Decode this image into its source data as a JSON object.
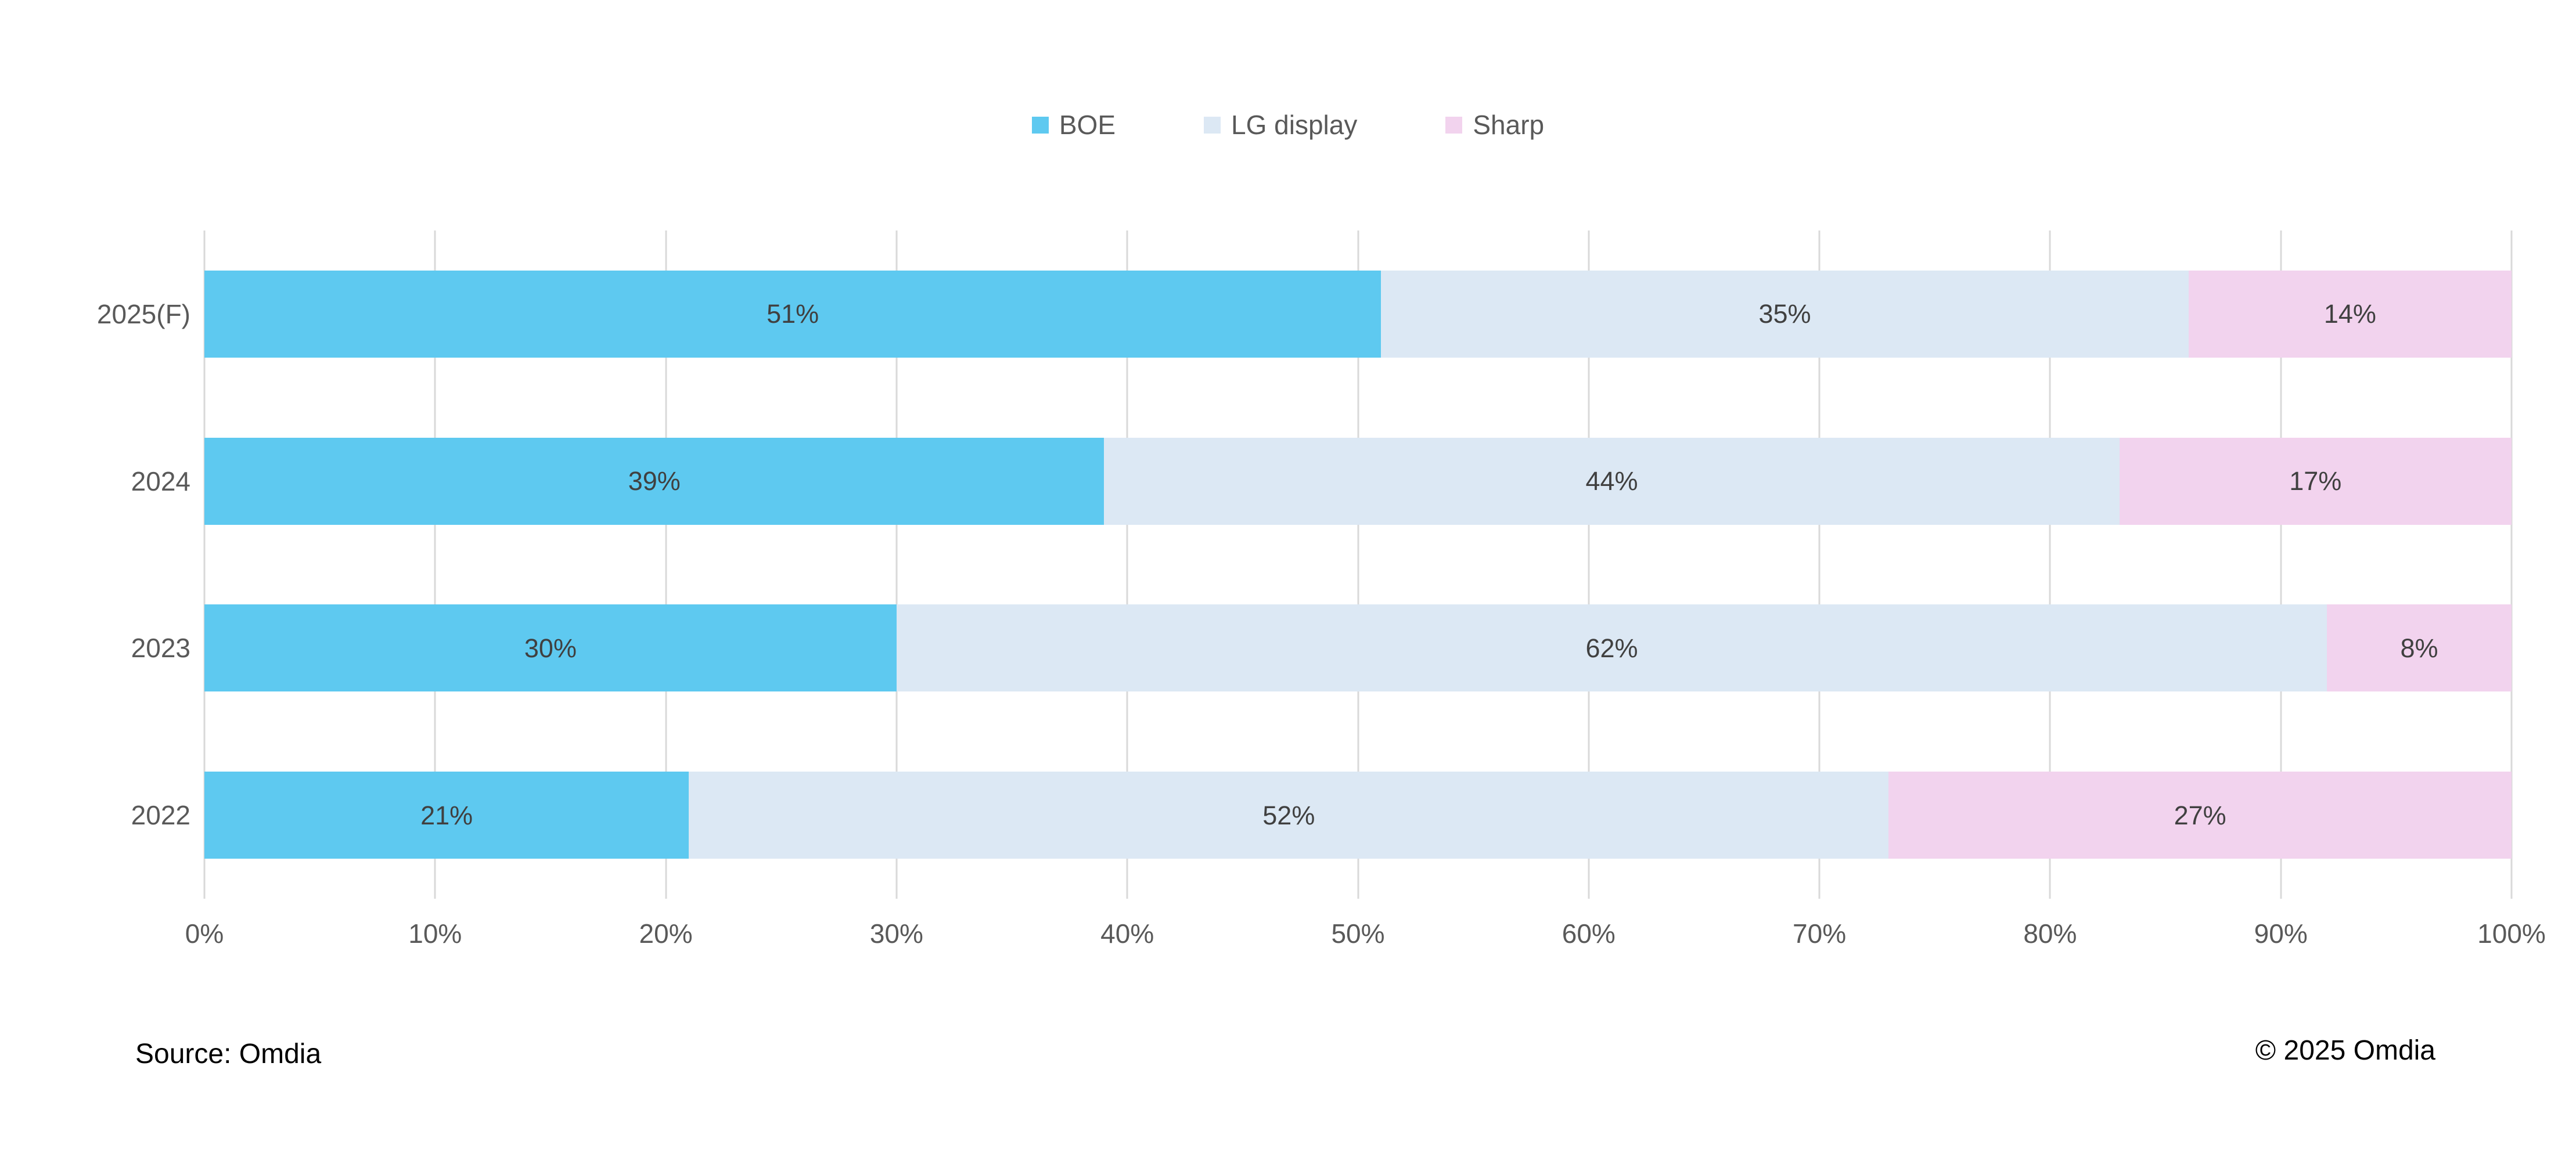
{
  "chart_data": {
    "type": "bar",
    "orientation": "horizontal",
    "stacked": true,
    "title": "",
    "categories": [
      "2025(F)",
      "2024",
      "2023",
      "2022"
    ],
    "series": [
      {
        "name": "BOE",
        "color": "#5EC9F0",
        "values": [
          51,
          39,
          30,
          21
        ]
      },
      {
        "name": "LG display",
        "color": "#DCE8F4",
        "values": [
          35,
          44,
          62,
          52
        ]
      },
      {
        "name": "Sharp",
        "color": "#F2D3EE",
        "values": [
          14,
          17,
          8,
          27
        ]
      }
    ],
    "x_ticks": [
      "0%",
      "10%",
      "20%",
      "30%",
      "40%",
      "50%",
      "60%",
      "70%",
      "80%",
      "90%",
      "100%"
    ],
    "xlim": [
      0,
      100
    ],
    "value_suffix": "%",
    "legend_position": "top-center",
    "grid": "vertical"
  },
  "theme": {
    "background": "#FFFFFF",
    "grid_color": "#D9D9D9",
    "segment_label_color": "#404040",
    "axis_label_color": "#595959",
    "footer_text_color": "#000000"
  },
  "footer": {
    "source": "Source: Omdia",
    "copyright": "© 2025 Omdia"
  }
}
